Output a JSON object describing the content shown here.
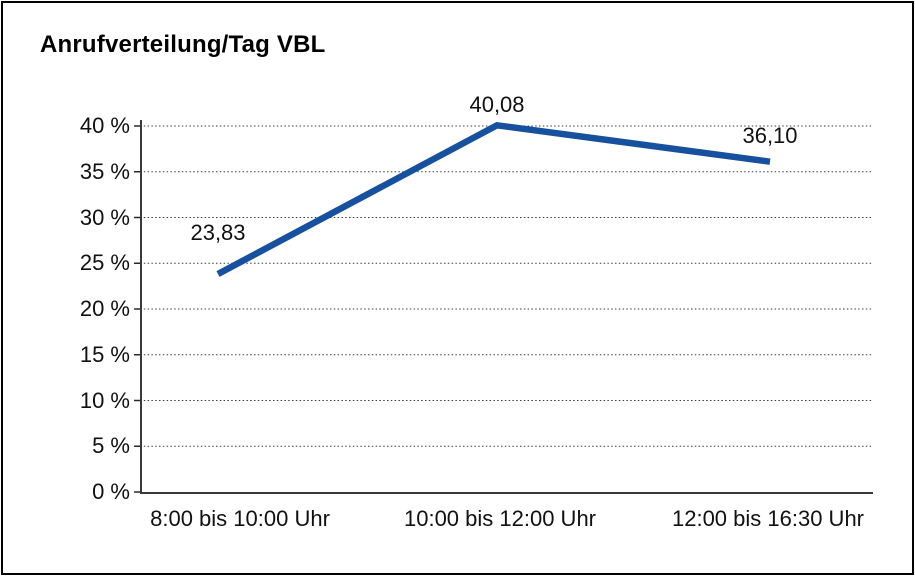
{
  "title": "Anrufverteilung/Tag VBL",
  "chart_data": {
    "type": "line",
    "title": "Anrufverteilung/Tag VBL",
    "categories": [
      "8:00 bis 10:00 Uhr",
      "10:00 bis 12:00 Uhr",
      "12:00 bis 16:30 Uhr"
    ],
    "values": [
      23.83,
      40.08,
      36.1
    ],
    "point_labels": [
      "23,83",
      "40,08",
      "36,10"
    ],
    "ylim": [
      0,
      40
    ],
    "ytick_step": 5,
    "yticks": [
      0,
      5,
      10,
      15,
      20,
      25,
      30,
      35,
      40
    ],
    "ytick_labels": [
      "0 %",
      "5 %",
      "10 %",
      "15 %",
      "20 %",
      "25 %",
      "30 %",
      "35 %",
      "40 %"
    ],
    "xlabel": "",
    "ylabel": "",
    "grid": "horizontal-dotted",
    "legend": "none",
    "colors": {
      "line": "#17519E",
      "grid": "#3c3c3c",
      "axis": "#3a3a3a",
      "text": "#111111",
      "title_text": "#000000",
      "background": "#ffffff",
      "border": "#000000"
    }
  }
}
